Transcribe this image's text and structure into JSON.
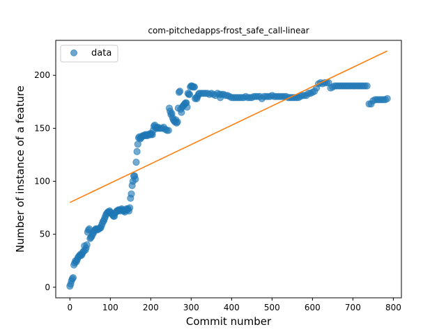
{
  "chart_data": {
    "type": "scatter",
    "title": "com-pitchedapps-frost_safe_call-linear",
    "xlabel": "Commit number",
    "ylabel": "Number of instance of a feature",
    "xlim": [
      -35,
      820
    ],
    "ylim": [
      -10,
      233
    ],
    "xticks": [
      0,
      100,
      200,
      300,
      400,
      500,
      600,
      700,
      800
    ],
    "yticks": [
      0,
      50,
      100,
      150,
      200
    ],
    "grid": false,
    "legend": {
      "placement": "top-left",
      "entries": [
        "data"
      ]
    },
    "colors": {
      "data": "#1f77b4",
      "fit": "#ff7f0e"
    },
    "fit_line": {
      "x": [
        0,
        785
      ],
      "y": [
        80,
        223
      ]
    },
    "series": [
      {
        "name": "data",
        "points": [
          [
            0,
            1
          ],
          [
            2,
            3
          ],
          [
            4,
            6
          ],
          [
            6,
            8
          ],
          [
            8,
            9
          ],
          [
            10,
            21
          ],
          [
            12,
            23
          ],
          [
            14,
            25
          ],
          [
            16,
            24
          ],
          [
            18,
            26
          ],
          [
            20,
            28
          ],
          [
            22,
            29
          ],
          [
            24,
            30
          ],
          [
            26,
            31
          ],
          [
            28,
            30
          ],
          [
            30,
            31
          ],
          [
            32,
            33
          ],
          [
            34,
            34
          ],
          [
            36,
            39
          ],
          [
            38,
            35
          ],
          [
            40,
            37
          ],
          [
            42,
            40
          ],
          [
            44,
            52
          ],
          [
            46,
            54
          ],
          [
            48,
            55
          ],
          [
            50,
            46
          ],
          [
            52,
            47
          ],
          [
            54,
            48
          ],
          [
            56,
            50
          ],
          [
            58,
            51
          ],
          [
            60,
            53
          ],
          [
            62,
            54
          ],
          [
            64,
            55
          ],
          [
            66,
            55
          ],
          [
            68,
            54
          ],
          [
            70,
            55
          ],
          [
            72,
            55
          ],
          [
            74,
            56
          ],
          [
            76,
            56
          ],
          [
            78,
            58
          ],
          [
            80,
            60
          ],
          [
            82,
            62
          ],
          [
            84,
            63
          ],
          [
            86,
            65
          ],
          [
            88,
            67
          ],
          [
            90,
            69
          ],
          [
            92,
            70
          ],
          [
            94,
            71
          ],
          [
            96,
            71
          ],
          [
            98,
            72
          ],
          [
            100,
            71
          ],
          [
            102,
            70
          ],
          [
            104,
            69
          ],
          [
            106,
            68
          ],
          [
            108,
            67
          ],
          [
            110,
            67
          ],
          [
            112,
            70
          ],
          [
            114,
            71
          ],
          [
            116,
            72
          ],
          [
            118,
            72
          ],
          [
            120,
            73
          ],
          [
            122,
            73
          ],
          [
            124,
            72
          ],
          [
            126,
            73
          ],
          [
            128,
            74
          ],
          [
            130,
            73
          ],
          [
            132,
            72
          ],
          [
            134,
            72
          ],
          [
            136,
            71
          ],
          [
            138,
            73
          ],
          [
            140,
            74
          ],
          [
            142,
            73
          ],
          [
            144,
            74
          ],
          [
            146,
            72
          ],
          [
            148,
            75
          ],
          [
            150,
            84
          ],
          [
            152,
            88
          ],
          [
            154,
            96
          ],
          [
            156,
            100
          ],
          [
            158,
            105
          ],
          [
            160,
            105
          ],
          [
            162,
            102
          ],
          [
            164,
            118
          ],
          [
            166,
            128
          ],
          [
            168,
            135
          ],
          [
            170,
            141
          ],
          [
            172,
            142
          ],
          [
            174,
            140
          ],
          [
            176,
            141
          ],
          [
            178,
            142
          ],
          [
            180,
            143
          ],
          [
            182,
            143
          ],
          [
            184,
            143
          ],
          [
            186,
            144
          ],
          [
            188,
            143
          ],
          [
            190,
            144
          ],
          [
            192,
            143
          ],
          [
            194,
            144
          ],
          [
            196,
            144
          ],
          [
            198,
            145
          ],
          [
            200,
            144
          ],
          [
            202,
            145
          ],
          [
            204,
            144
          ],
          [
            206,
            148
          ],
          [
            208,
            152
          ],
          [
            210,
            153
          ],
          [
            212,
            151
          ],
          [
            214,
            150
          ],
          [
            216,
            150
          ],
          [
            218,
            151
          ],
          [
            220,
            150
          ],
          [
            224,
            150
          ],
          [
            228,
            150
          ],
          [
            232,
            151
          ],
          [
            236,
            149
          ],
          [
            240,
            148
          ],
          [
            244,
            148
          ],
          [
            246,
            169
          ],
          [
            248,
            166
          ],
          [
            250,
            163
          ],
          [
            252,
            164
          ],
          [
            254,
            160
          ],
          [
            256,
            158
          ],
          [
            258,
            157
          ],
          [
            260,
            156
          ],
          [
            262,
            158
          ],
          [
            264,
            155
          ],
          [
            266,
            156
          ],
          [
            268,
            169
          ],
          [
            270,
            184
          ],
          [
            272,
            185
          ],
          [
            274,
            168
          ],
          [
            276,
            165
          ],
          [
            278,
            170
          ],
          [
            280,
            171
          ],
          [
            282,
            172
          ],
          [
            284,
            173
          ],
          [
            286,
            174
          ],
          [
            288,
            174
          ],
          [
            290,
            170
          ],
          [
            292,
            183
          ],
          [
            294,
            182
          ],
          [
            296,
            182
          ],
          [
            298,
            189
          ],
          [
            300,
            190
          ],
          [
            302,
            190
          ],
          [
            304,
            189
          ],
          [
            306,
            189
          ],
          [
            308,
            189
          ],
          [
            310,
            178
          ],
          [
            312,
            179
          ],
          [
            314,
            178
          ],
          [
            316,
            180
          ],
          [
            318,
            182
          ],
          [
            320,
            183
          ],
          [
            325,
            183
          ],
          [
            330,
            183
          ],
          [
            335,
            183
          ],
          [
            340,
            183
          ],
          [
            345,
            182
          ],
          [
            350,
            183
          ],
          [
            355,
            182
          ],
          [
            360,
            181
          ],
          [
            365,
            183
          ],
          [
            370,
            182
          ],
          [
            372,
            179
          ],
          [
            375,
            182
          ],
          [
            380,
            182
          ],
          [
            385,
            181
          ],
          [
            390,
            181
          ],
          [
            395,
            180
          ],
          [
            400,
            179
          ],
          [
            405,
            179
          ],
          [
            410,
            179
          ],
          [
            415,
            179
          ],
          [
            420,
            179
          ],
          [
            425,
            179
          ],
          [
            430,
            179
          ],
          [
            435,
            180
          ],
          [
            440,
            179
          ],
          [
            445,
            179
          ],
          [
            450,
            179
          ],
          [
            455,
            180
          ],
          [
            460,
            180
          ],
          [
            465,
            180
          ],
          [
            470,
            180
          ],
          [
            475,
            178
          ],
          [
            480,
            180
          ],
          [
            485,
            180
          ],
          [
            490,
            180
          ],
          [
            495,
            180
          ],
          [
            500,
            181
          ],
          [
            505,
            180
          ],
          [
            510,
            180
          ],
          [
            515,
            180
          ],
          [
            520,
            180
          ],
          [
            525,
            180
          ],
          [
            530,
            180
          ],
          [
            535,
            180
          ],
          [
            540,
            179
          ],
          [
            545,
            179
          ],
          [
            550,
            179
          ],
          [
            555,
            179
          ],
          [
            560,
            179
          ],
          [
            565,
            179
          ],
          [
            570,
            180
          ],
          [
            575,
            181
          ],
          [
            580,
            181
          ],
          [
            585,
            181
          ],
          [
            590,
            183
          ],
          [
            595,
            183
          ],
          [
            600,
            184
          ],
          [
            605,
            185
          ],
          [
            610,
            188
          ],
          [
            615,
            192
          ],
          [
            620,
            193
          ],
          [
            625,
            192
          ],
          [
            630,
            193
          ],
          [
            635,
            193
          ],
          [
            640,
            193
          ],
          [
            645,
            188
          ],
          [
            650,
            189
          ],
          [
            655,
            190
          ],
          [
            660,
            190
          ],
          [
            665,
            190
          ],
          [
            670,
            190
          ],
          [
            675,
            190
          ],
          [
            680,
            190
          ],
          [
            685,
            190
          ],
          [
            690,
            190
          ],
          [
            695,
            190
          ],
          [
            700,
            190
          ],
          [
            705,
            190
          ],
          [
            710,
            190
          ],
          [
            715,
            190
          ],
          [
            720,
            190
          ],
          [
            725,
            190
          ],
          [
            730,
            190
          ],
          [
            735,
            190
          ],
          [
            740,
            173
          ],
          [
            745,
            173
          ],
          [
            750,
            176
          ],
          [
            755,
            177
          ],
          [
            760,
            177
          ],
          [
            765,
            177
          ],
          [
            770,
            177
          ],
          [
            775,
            177
          ],
          [
            780,
            177
          ],
          [
            785,
            178
          ]
        ]
      }
    ]
  }
}
